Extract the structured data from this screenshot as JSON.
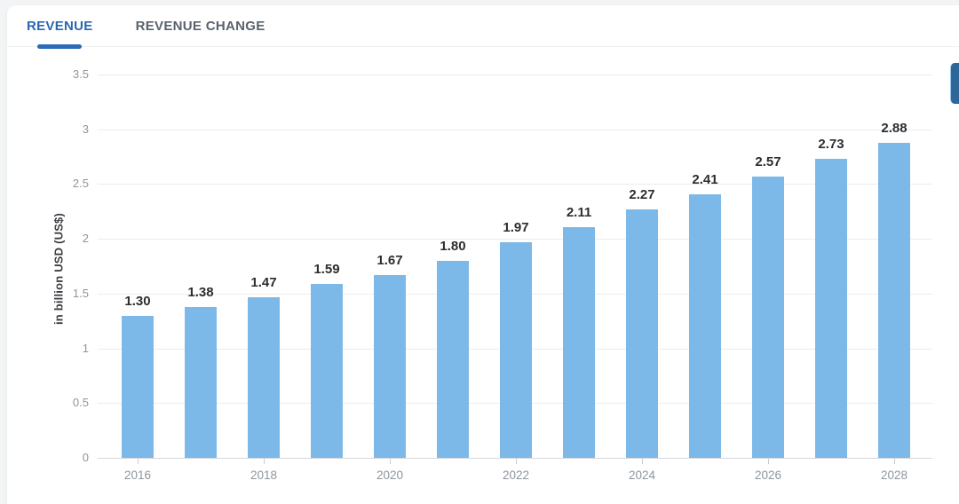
{
  "tabs": [
    {
      "label": "REVENUE",
      "active": true
    },
    {
      "label": "REVENUE CHANGE",
      "active": false
    }
  ],
  "chart_data": {
    "type": "bar",
    "categories": [
      "2016",
      "2017",
      "2018",
      "2019",
      "2020",
      "2021",
      "2022",
      "2023",
      "2024",
      "2025",
      "2026",
      "2027",
      "2028"
    ],
    "values": [
      1.3,
      1.38,
      1.47,
      1.59,
      1.67,
      1.8,
      1.97,
      2.11,
      2.27,
      2.41,
      2.57,
      2.73,
      2.88
    ],
    "value_labels": [
      "1.30",
      "1.38",
      "1.47",
      "1.59",
      "1.67",
      "1.80",
      "1.97",
      "2.11",
      "2.27",
      "2.41",
      "2.57",
      "2.73",
      "2.88"
    ],
    "title": "",
    "xlabel": "",
    "ylabel": "in billion USD (US$)",
    "ylim": [
      0,
      3.5
    ],
    "ytick_step": 0.5,
    "ytick_labels": [
      "0",
      "0.5",
      "1",
      "1.5",
      "2",
      "2.5",
      "3",
      "3.5"
    ],
    "xtick_labels_shown": [
      "2016",
      "2018",
      "2020",
      "2022",
      "2024",
      "2026",
      "2028"
    ],
    "grid": "horizontal",
    "legend": "none",
    "bar_color": "#7db9e8"
  },
  "colors": {
    "accent_blue": "#2b66b2",
    "tab_underline": "#2a6cba",
    "bar_blue": "#7db9e8",
    "inactive_tab": "#59626c",
    "tick_text": "#8e959e",
    "value_text": "#2b2d30"
  }
}
